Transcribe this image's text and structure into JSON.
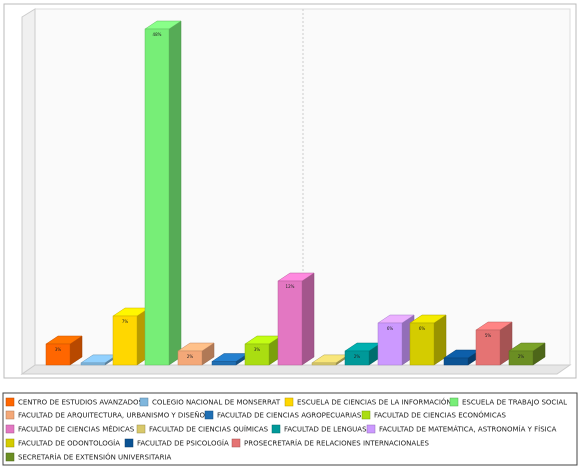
{
  "chart_data": {
    "type": "bar3d",
    "categories": [
      "CENTRO DE ESTUDIOS AVANZADOS",
      "COLEGIO NACIONAL DE MONSERRAT",
      "ESCUELA DE CIENCIAS DE LA INFORMACIÓN",
      "ESCUELA DE TRABAJO SOCIAL",
      "FACULTAD DE ARQUITECTURA, URBANISMO Y DISEÑO",
      "FACULTAD DE CIENCIAS AGROPECUARIAS",
      "FACULTAD DE CIENCIAS ECONÓMICAS",
      "FACULTAD DE CIENCIAS MÉDICAS",
      "FACULTAD DE CIENCIAS QUÍMICAS",
      "FACULTAD DE LENGUAS",
      "FACULTAD DE MATEMÁTICA, ASTRONOMÍA Y FÍSICA",
      "FACULTAD DE ODONTOLOGÍA",
      "FACULTAD DE PSICOLOGÍA",
      "PROSECRETARÍA DE RELACIONES INTERNACIONALES",
      "SECRETARÍA DE EXTENSIÓN UNIVERSITARIA"
    ],
    "values": [
      3,
      0.3,
      7,
      48,
      2,
      0.5,
      3,
      12,
      0.3,
      2,
      6,
      6,
      1,
      5,
      2
    ],
    "value_labels": [
      "3%",
      null,
      "7%",
      "48%",
      "2%",
      null,
      "3%",
      "12%",
      null,
      "2%",
      "6%",
      "6%",
      null,
      "5%",
      "2%"
    ],
    "colors": [
      "#ff6600",
      "#7fb6dd",
      "#ffd700",
      "#77ee77",
      "#f4a878",
      "#1f6fb4",
      "#aadd11",
      "#e377c2",
      "#d8c86a",
      "#009999",
      "#cc99ff",
      "#d4cc00",
      "#0b5394",
      "#e57373",
      "#6b8e23"
    ],
    "ylim": [
      0,
      50
    ]
  }
}
